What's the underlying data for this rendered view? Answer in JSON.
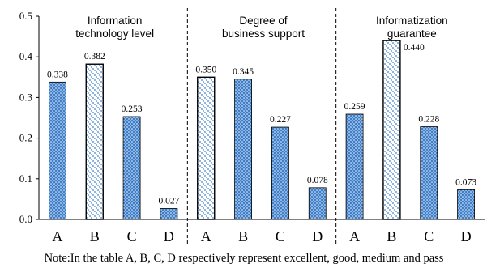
{
  "chart_data": {
    "type": "bar",
    "ylim": [
      0,
      0.5
    ],
    "y_ticks": [
      "0.0",
      "0.1",
      "0.2",
      "0.3",
      "0.4",
      "0.5"
    ],
    "grid": false,
    "groups": [
      {
        "title_lines": [
          "Information",
          "technology level"
        ],
        "categories": [
          "A",
          "B",
          "C",
          "D"
        ],
        "values": [
          0.338,
          0.382,
          0.253,
          0.027
        ],
        "labels": [
          "0.338",
          "0.382",
          "0.253",
          "0.027"
        ]
      },
      {
        "title_lines": [
          "Degree of",
          "business support"
        ],
        "categories": [
          "A",
          "B",
          "C",
          "D"
        ],
        "values": [
          0.35,
          0.345,
          0.227,
          0.078
        ],
        "labels": [
          "0.350",
          "0.345",
          "0.227",
          "0.078"
        ]
      },
      {
        "title_lines": [
          "Informatization",
          "guarantee"
        ],
        "categories": [
          "A",
          "B",
          "C",
          "D"
        ],
        "values": [
          0.259,
          0.44,
          0.228,
          0.073
        ],
        "labels": [
          "0.259",
          "0.440",
          "0.228",
          "0.073"
        ]
      }
    ],
    "highlight_bar_index_per_group": [
      1,
      0,
      1
    ],
    "colors": {
      "dotted_bar": "#3f7fc9",
      "highlight_bar": "#3f7fc9",
      "outline": "#000000"
    },
    "note": "Note:In the table A, B, C, D respectively represent excellent, good, medium and pass"
  }
}
